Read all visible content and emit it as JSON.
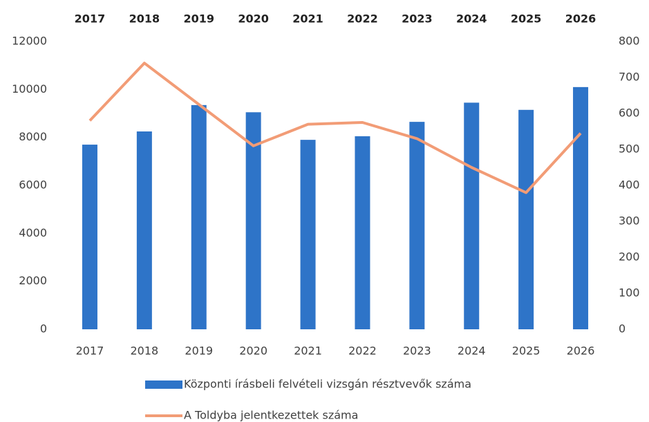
{
  "chart_data": {
    "type": "bar_line",
    "categories": [
      "2017",
      "2018",
      "2019",
      "2020",
      "2021",
      "2022",
      "2023",
      "2024",
      "2025",
      "2026"
    ],
    "series": [
      {
        "name": "Központi írásbeli felvételi vizsgán résztvevők száma",
        "type": "bar",
        "color": "#2e74c8",
        "values": [
          7700,
          8250,
          9350,
          9050,
          7900,
          8050,
          8650,
          9450,
          9150,
          10100
        ]
      },
      {
        "name": "A Toldyba jelentkezettek száma",
        "type": "line",
        "color": "#f29c76",
        "axis": "y2",
        "values": [
          580,
          740,
          625,
          510,
          570,
          575,
          530,
          450,
          380,
          545
        ]
      }
    ],
    "ylim": [
      0,
      12000
    ],
    "yticks": [
      0,
      2000,
      4000,
      6000,
      8000,
      10000,
      12000
    ],
    "y2lim": [
      0,
      800
    ],
    "y2ticks": [
      0,
      100,
      200,
      300,
      400,
      500,
      600,
      700,
      800
    ],
    "grid": false,
    "legend": "bottom"
  }
}
